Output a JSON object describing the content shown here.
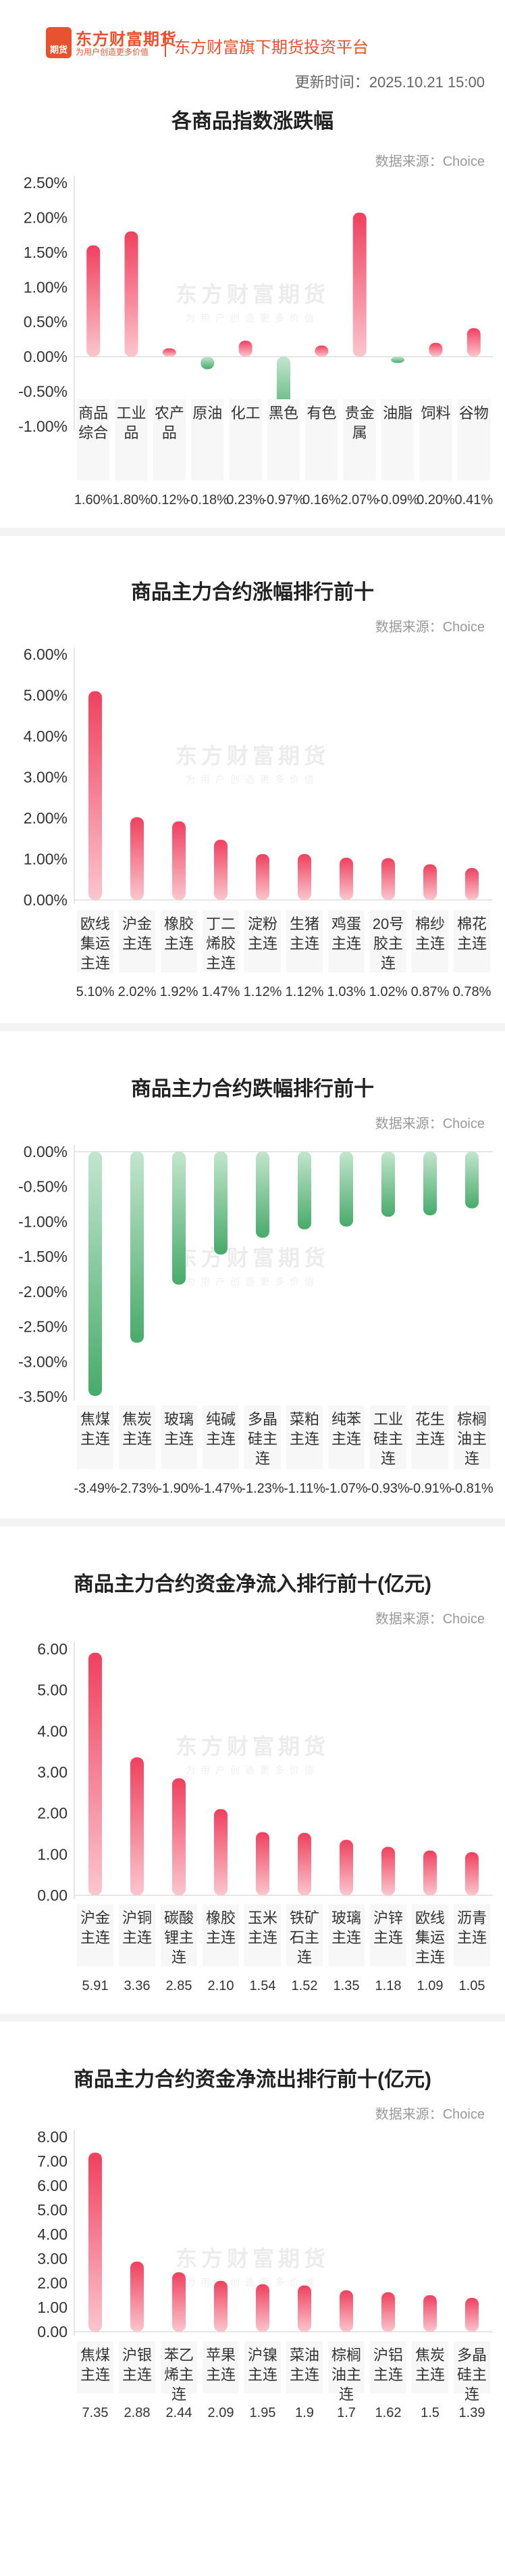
{
  "header": {
    "brand_name": "东方财富期货",
    "logo_mark": "期货",
    "brand_slogan": "为用户创造更多价值",
    "platform": "东方财富旗下期货投资平台",
    "update_time": "更新时间：2025.10.21 15:00"
  },
  "source_label": "数据来源：Choice",
  "watermark": {
    "name": "东方财富期货",
    "slogan": "为用户创造更多价值"
  },
  "colors": {
    "up": "#f04060",
    "down": "#4cae6e"
  },
  "chart_data": [
    {
      "type": "bar",
      "title": "各商品指数涨跌幅",
      "categories": [
        "商品综合",
        "工业品",
        "农产品",
        "原油",
        "化工",
        "黑色",
        "有色",
        "贵金属",
        "油脂",
        "饲料",
        "谷物"
      ],
      "values": [
        1.6,
        1.8,
        0.12,
        -0.18,
        0.23,
        -0.97,
        0.16,
        2.07,
        -0.09,
        0.2,
        0.41
      ],
      "value_labels": [
        "1.60%",
        "1.80%",
        "0.12%",
        "-0.18%",
        "0.23%",
        "-0.97%",
        "0.16%",
        "2.07%",
        "-0.09%",
        "0.20%",
        "0.41%"
      ],
      "ylim": [
        -1.0,
        2.5
      ],
      "yticks": [
        "2.50%",
        "2.00%",
        "1.50%",
        "1.00%",
        "0.50%",
        "0.00%",
        "-0.50%",
        "-1.00%"
      ]
    },
    {
      "type": "bar",
      "title": "商品主力合约涨幅排行前十",
      "categories": [
        "欧线集运主连",
        "沪金主连",
        "橡胶主连",
        "丁二烯胶主连",
        "淀粉主连",
        "生猪主连",
        "鸡蛋主连",
        "20号胶主连",
        "棉纱主连",
        "棉花主连"
      ],
      "values": [
        5.1,
        2.02,
        1.92,
        1.47,
        1.12,
        1.12,
        1.03,
        1.02,
        0.87,
        0.78
      ],
      "value_labels": [
        "5.10%",
        "2.02%",
        "1.92%",
        "1.47%",
        "1.12%",
        "1.12%",
        "1.03%",
        "1.02%",
        "0.87%",
        "0.78%"
      ],
      "ylim": [
        0,
        6
      ],
      "yticks": [
        "6.00%",
        "5.00%",
        "4.00%",
        "3.00%",
        "2.00%",
        "1.00%",
        "0.00%"
      ]
    },
    {
      "type": "bar",
      "title": "商品主力合约跌幅排行前十",
      "categories": [
        "焦煤主连",
        "焦炭主连",
        "玻璃主连",
        "纯碱主连",
        "多晶硅主连",
        "菜粕主连",
        "纯苯主连",
        "工业硅主连",
        "花生主连",
        "棕榈油主连"
      ],
      "values": [
        -3.49,
        -2.73,
        -1.9,
        -1.47,
        -1.23,
        -1.11,
        -1.07,
        -0.93,
        -0.91,
        -0.81
      ],
      "value_labels": [
        "-3.49%",
        "-2.73%",
        "-1.90%",
        "-1.47%",
        "-1.23%",
        "-1.11%",
        "-1.07%",
        "-0.93%",
        "-0.91%",
        "-0.81%"
      ],
      "ylim": [
        -3.5,
        0
      ],
      "yticks": [
        "0.00%",
        "-0.50%",
        "-1.00%",
        "-1.50%",
        "-2.00%",
        "-2.50%",
        "-3.00%",
        "-3.50%"
      ]
    },
    {
      "type": "bar",
      "title": "商品主力合约资金净流入排行前十(亿元)",
      "categories": [
        "沪金主连",
        "沪铜主连",
        "碳酸锂主连",
        "橡胶主连",
        "玉米主连",
        "铁矿石主连",
        "玻璃主连",
        "沪锌主连",
        "欧线集运主连",
        "沥青主连"
      ],
      "values": [
        5.91,
        3.36,
        2.85,
        2.1,
        1.54,
        1.52,
        1.35,
        1.18,
        1.09,
        1.05
      ],
      "value_labels": [
        "5.91",
        "3.36",
        "2.85",
        "2.10",
        "1.54",
        "1.52",
        "1.35",
        "1.18",
        "1.09",
        "1.05"
      ],
      "ylim": [
        0,
        6
      ],
      "yticks": [
        "6.00",
        "5.00",
        "4.00",
        "3.00",
        "2.00",
        "1.00",
        "0.00"
      ]
    },
    {
      "type": "bar",
      "title": "商品主力合约资金净流出排行前十(亿元)",
      "categories": [
        "焦煤主连",
        "沪银主连",
        "苯乙烯主连",
        "苹果主连",
        "沪镍主连",
        "菜油主连",
        "棕榈油主连",
        "沪铝主连",
        "焦炭主连",
        "多晶硅主连"
      ],
      "values": [
        7.35,
        2.88,
        2.44,
        2.09,
        1.95,
        1.9,
        1.7,
        1.62,
        1.5,
        1.39
      ],
      "value_labels": [
        "7.35",
        "2.88",
        "2.44",
        "2.09",
        "1.95",
        "1.9",
        "1.7",
        "1.62",
        "1.5",
        "1.39"
      ],
      "ylim": [
        0,
        8
      ],
      "yticks": [
        "8.00",
        "7.00",
        "6.00",
        "5.00",
        "4.00",
        "3.00",
        "2.00",
        "1.00",
        "0.00"
      ]
    }
  ]
}
